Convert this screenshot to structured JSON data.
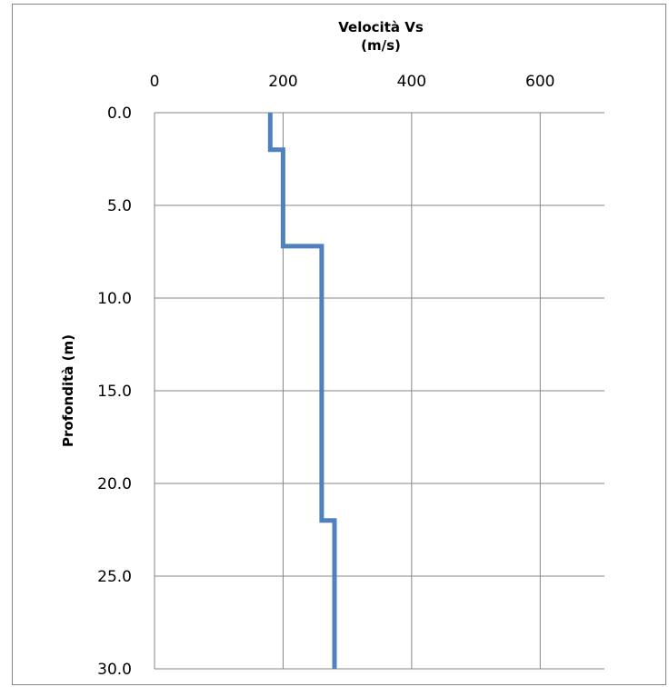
{
  "chart_data": {
    "type": "line",
    "x_axis": {
      "title_lines": [
        "Velocità Vs",
        "(m/s)"
      ],
      "position": "top",
      "range": [
        0,
        700
      ],
      "ticks": [
        0,
        200,
        400,
        600
      ],
      "tick_labels": [
        "0",
        "200",
        "400",
        "600"
      ]
    },
    "y_axis": {
      "title": "Profondità (m)",
      "range": [
        0,
        30
      ],
      "reversed": true,
      "ticks": [
        0,
        5,
        10,
        15,
        20,
        25,
        30
      ],
      "tick_labels": [
        "0.0",
        "5.0",
        "10.0",
        "15.0",
        "20.0",
        "25.0",
        "30.0"
      ]
    },
    "grid": true,
    "legend": "none",
    "series": [
      {
        "color": "#4F81BD",
        "points": [
          {
            "x": 180,
            "y": 0
          },
          {
            "x": 180,
            "y": 2
          },
          {
            "x": 200,
            "y": 2
          },
          {
            "x": 200,
            "y": 7.2
          },
          {
            "x": 260,
            "y": 7.2
          },
          {
            "x": 260,
            "y": 22
          },
          {
            "x": 280,
            "y": 22
          },
          {
            "x": 280,
            "y": 30
          }
        ]
      }
    ]
  }
}
